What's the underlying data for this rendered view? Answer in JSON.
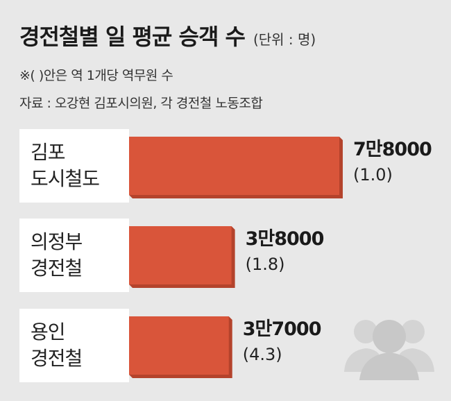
{
  "header": {
    "title": "경전철별 일 평균 승객 수",
    "unit": "(단위 : 명)",
    "note": "※(  )안은 역 1개당 역무원 수",
    "source": "자료 : 오강현 김포시의원, 각 경전철 노동조합"
  },
  "colors": {
    "bar": "#d9553a",
    "bar_shadow": "#b4432c",
    "background": "#e8e8e8",
    "label_bg": "#ffffff"
  },
  "icon": "people-group-icon",
  "chart_data": {
    "type": "bar",
    "orientation": "horizontal",
    "categories": [
      "김포 도시철도",
      "의정부 경전철",
      "용인 경전철"
    ],
    "category_lines": [
      [
        "김포",
        "도시철도"
      ],
      [
        "의정부",
        "경전철"
      ],
      [
        "용인",
        "경전철"
      ]
    ],
    "values": [
      78000,
      38000,
      37000
    ],
    "value_labels": [
      "7만8000",
      "3만8000",
      "3만7000"
    ],
    "staff_per_station": [
      1.0,
      1.8,
      4.3
    ],
    "staff_labels": [
      "(1.0)",
      "(1.8)",
      "(4.3)"
    ]
  }
}
